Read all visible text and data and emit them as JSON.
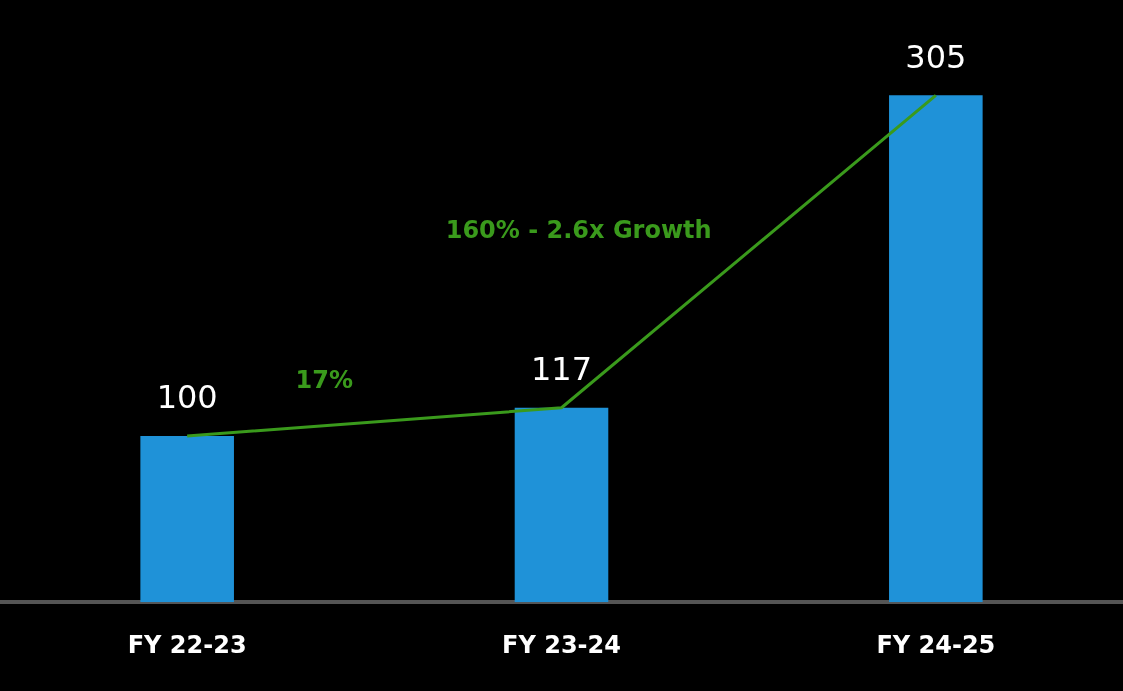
{
  "chart_data": {
    "type": "bar",
    "categories": [
      "FY 22-23",
      "FY 23-24",
      "FY 24-25"
    ],
    "series": [
      {
        "color": "#1f92d8",
        "values": [
          100,
          117,
          305
        ],
        "value_labels": [
          "100",
          "117",
          "305"
        ]
      },
      {
        "type": "line",
        "color": "#3a9a1c",
        "values": [
          100,
          117,
          305
        ]
      }
    ],
    "grid": false,
    "legend": false,
    "marker": "none",
    "annotations": [
      "17%",
      "160% - 2.6x Growth"
    ]
  }
}
